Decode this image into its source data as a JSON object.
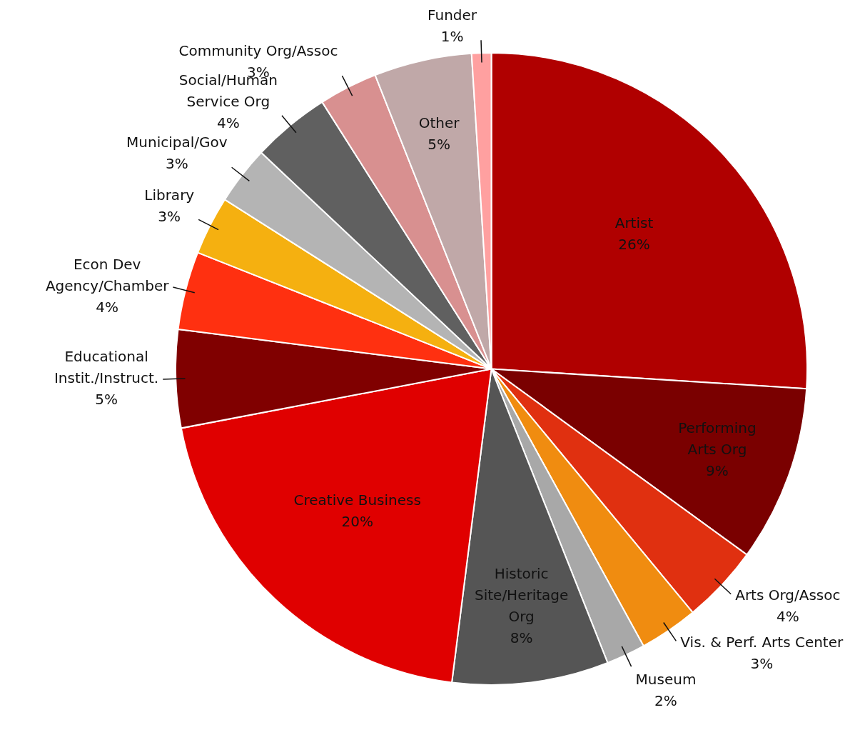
{
  "chart_data": {
    "type": "pie",
    "categories": [
      "Artist",
      "Performing Arts Org",
      "Arts Org/Assoc",
      "Vis. & Perf. Arts Center",
      "Museum",
      "Historic Site/Heritage Org",
      "Creative Business",
      "Educational Instit./Instruct.",
      "Econ Dev Agency/Chamber",
      "Library",
      "Municipal/Gov",
      "Social/Human Service Org",
      "Community Org/Assoc",
      "Other",
      "Funder"
    ],
    "values": [
      26,
      9,
      4,
      3,
      2,
      8,
      20,
      5,
      4,
      3,
      3,
      4,
      3,
      5,
      1
    ],
    "value_labels": [
      "26%",
      "9%",
      "4%",
      "3%",
      "2%",
      "8%",
      "20%",
      "5%",
      "4%",
      "3%",
      "3%",
      "4%",
      "3%",
      "5%",
      "1%"
    ],
    "colors": [
      "#b00000",
      "#7a0000",
      "#e03010",
      "#f08c10",
      "#a8a8a8",
      "#555555",
      "#e00000",
      "#800000",
      "#ff3010",
      "#f5b010",
      "#b4b4b4",
      "#606060",
      "#d89090",
      "#c0a8a8",
      "#ffa0a0"
    ],
    "legend": false
  }
}
